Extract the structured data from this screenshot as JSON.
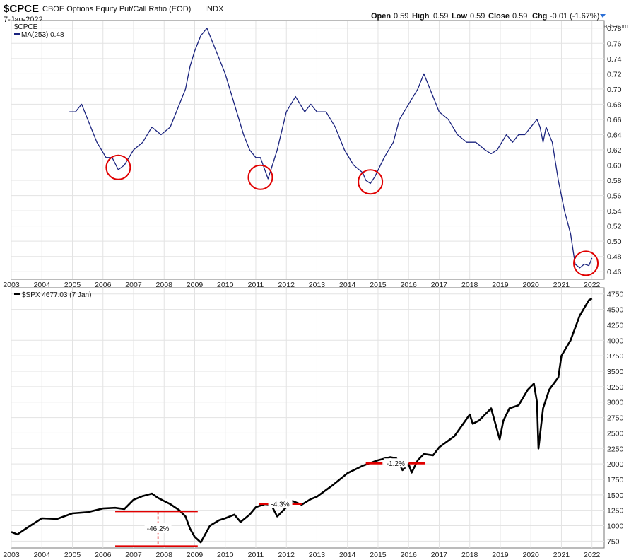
{
  "header": {
    "symbol": "$CPCE",
    "name": "CBOE Options Equity Put/Call Ratio (EOD)",
    "exchange": "INDX",
    "date": "7-Jan-2022",
    "ohlc": {
      "open_label": "Open",
      "open": "0.59",
      "high_label": "High",
      "high": "0.59",
      "low_label": "Low",
      "low": "0.59",
      "close_label": "Close",
      "close": "0.59",
      "chg_label": "Chg",
      "chg": "-0.01 (-1.67%)"
    },
    "watermark": "© StockCharts.com"
  },
  "chart_data": [
    {
      "type": "line",
      "legend": {
        "symbol": "$CPCE",
        "ma": "MA(253) 0.48"
      },
      "x_ticks": [
        "2003",
        "2004",
        "2005",
        "2006",
        "2007",
        "2008",
        "2009",
        "2010",
        "2011",
        "2012",
        "2013",
        "2014",
        "2015",
        "2016",
        "2017",
        "2018",
        "2019",
        "2020",
        "2021",
        "2022"
      ],
      "y_ticks": [
        0.46,
        0.48,
        0.5,
        0.52,
        0.54,
        0.56,
        0.58,
        0.6,
        0.62,
        0.64,
        0.66,
        0.68,
        0.7,
        0.72,
        0.74,
        0.76,
        0.78
      ],
      "ylim": [
        0.45,
        0.79
      ],
      "xlim": [
        2003.0,
        2022.4
      ],
      "series": [
        {
          "name": "MA(253)",
          "color": "#1a237e",
          "x": [
            2004.9,
            2005.1,
            2005.3,
            2005.5,
            2005.8,
            2006.1,
            2006.3,
            2006.5,
            2006.7,
            2007.0,
            2007.3,
            2007.6,
            2007.9,
            2008.2,
            2008.5,
            2008.7,
            2008.85,
            2009.0,
            2009.2,
            2009.4,
            2009.6,
            2009.8,
            2010.0,
            2010.3,
            2010.6,
            2010.8,
            2011.0,
            2011.15,
            2011.4,
            2011.7,
            2012.0,
            2012.3,
            2012.6,
            2012.8,
            2013.0,
            2013.3,
            2013.6,
            2013.9,
            2014.2,
            2014.5,
            2014.6,
            2014.75,
            2014.9,
            2015.2,
            2015.5,
            2015.7,
            2016.0,
            2016.3,
            2016.5,
            2016.7,
            2017.0,
            2017.3,
            2017.6,
            2017.9,
            2018.2,
            2018.5,
            2018.7,
            2018.9,
            2019.2,
            2019.4,
            2019.6,
            2019.8,
            2020.0,
            2020.2,
            2020.3,
            2020.4,
            2020.5,
            2020.7,
            2020.9,
            2021.1,
            2021.3,
            2021.45,
            2021.6,
            2021.75,
            2021.9,
            2022.0
          ],
          "y": [
            0.67,
            0.67,
            0.68,
            0.66,
            0.63,
            0.61,
            0.61,
            0.594,
            0.6,
            0.62,
            0.63,
            0.65,
            0.64,
            0.65,
            0.68,
            0.7,
            0.73,
            0.75,
            0.77,
            0.78,
            0.76,
            0.74,
            0.72,
            0.68,
            0.64,
            0.62,
            0.61,
            0.61,
            0.582,
            0.62,
            0.67,
            0.69,
            0.67,
            0.68,
            0.67,
            0.67,
            0.65,
            0.62,
            0.6,
            0.59,
            0.58,
            0.576,
            0.585,
            0.61,
            0.63,
            0.66,
            0.68,
            0.7,
            0.72,
            0.7,
            0.67,
            0.66,
            0.64,
            0.63,
            0.63,
            0.62,
            0.615,
            0.62,
            0.64,
            0.63,
            0.64,
            0.64,
            0.65,
            0.66,
            0.65,
            0.63,
            0.65,
            0.63,
            0.58,
            0.54,
            0.51,
            0.47,
            0.465,
            0.47,
            0.468,
            0.478
          ]
        }
      ],
      "annotations": [
        {
          "shape": "circle",
          "color": "#e00000",
          "x": 2006.5,
          "y": 0.597
        },
        {
          "shape": "circle",
          "color": "#e00000",
          "x": 2011.15,
          "y": 0.584
        },
        {
          "shape": "circle",
          "color": "#e00000",
          "x": 2014.75,
          "y": 0.578
        },
        {
          "shape": "circle",
          "color": "#e00000",
          "x": 2021.8,
          "y": 0.471
        }
      ]
    },
    {
      "type": "line",
      "legend": {
        "label": "$SPX 4677.03 (7 Jan)"
      },
      "x_ticks": [
        "2003",
        "2004",
        "2005",
        "2006",
        "2007",
        "2008",
        "2009",
        "2010",
        "2011",
        "2012",
        "2013",
        "2014",
        "2015",
        "2016",
        "2017",
        "2018",
        "2019",
        "2020",
        "2021",
        "2022"
      ],
      "y_ticks": [
        750,
        1000,
        1250,
        1500,
        1750,
        2000,
        2250,
        2500,
        2750,
        3000,
        3250,
        3500,
        3750,
        4000,
        4250,
        4500,
        4750
      ],
      "ylim": [
        640,
        4850
      ],
      "xlim": [
        2003.0,
        2022.4
      ],
      "series": [
        {
          "name": "$SPX",
          "color": "#000000",
          "x": [
            2003.0,
            2003.2,
            2003.5,
            2004.0,
            2004.5,
            2005.0,
            2005.5,
            2006.0,
            2006.4,
            2006.7,
            2007.0,
            2007.3,
            2007.6,
            2007.8,
            2008.0,
            2008.2,
            2008.5,
            2008.7,
            2008.85,
            2009.0,
            2009.2,
            2009.5,
            2009.8,
            2010.0,
            2010.3,
            2010.5,
            2010.8,
            2011.0,
            2011.3,
            2011.5,
            2011.7,
            2011.9,
            2012.2,
            2012.5,
            2012.8,
            2013.0,
            2013.5,
            2014.0,
            2014.5,
            2015.0,
            2015.4,
            2015.6,
            2015.8,
            2016.0,
            2016.1,
            2016.3,
            2016.5,
            2016.8,
            2017.0,
            2017.5,
            2018.0,
            2018.1,
            2018.3,
            2018.7,
            2018.98,
            2019.1,
            2019.3,
            2019.6,
            2019.9,
            2020.1,
            2020.2,
            2020.25,
            2020.4,
            2020.6,
            2020.9,
            2021.0,
            2021.3,
            2021.6,
            2021.9,
            2022.0
          ],
          "y": [
            900,
            860,
            960,
            1120,
            1110,
            1200,
            1220,
            1280,
            1290,
            1270,
            1420,
            1480,
            1520,
            1450,
            1400,
            1350,
            1250,
            1150,
            950,
            820,
            730,
            1000,
            1090,
            1120,
            1180,
            1060,
            1180,
            1300,
            1350,
            1340,
            1150,
            1250,
            1400,
            1340,
            1430,
            1470,
            1650,
            1850,
            1970,
            2060,
            2110,
            2090,
            1900,
            2000,
            1860,
            2060,
            2160,
            2140,
            2270,
            2450,
            2800,
            2650,
            2700,
            2900,
            2400,
            2700,
            2900,
            2950,
            3200,
            3300,
            3000,
            2250,
            2900,
            3200,
            3400,
            3750,
            4000,
            4400,
            4650,
            4677
          ]
        }
      ],
      "annotations": [
        {
          "shape": "bracket",
          "color": "#e00000",
          "x1": 2006.4,
          "x2": 2009.1,
          "y_top": 1230,
          "y_bottom": 670,
          "x_mid": 2007.8,
          "label": "-46.2%"
        },
        {
          "shape": "band",
          "color": "#e00000",
          "x1": 2011.1,
          "x2": 2012.5,
          "y": 1355,
          "label": "-4.3%"
        },
        {
          "shape": "band",
          "color": "#e00000",
          "x1": 2014.6,
          "x2": 2016.55,
          "y": 2010,
          "label": "-1.2%"
        }
      ]
    }
  ]
}
